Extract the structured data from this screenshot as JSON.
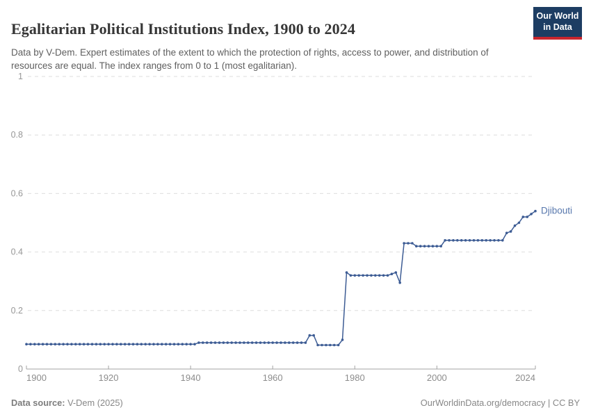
{
  "header": {
    "title": "Egalitarian Political Institutions Index, 1900 to 2024",
    "subtitle": "Data by V-Dem. Expert estimates of the extent to which the protection of rights, access to power, and distribution of resources are equal. The index ranges from 0 to 1 (most egalitarian).",
    "logo": {
      "line1": "Our World",
      "line2": "in Data",
      "bg_color": "#1d3d63",
      "accent_color": "#c9262e"
    }
  },
  "footer": {
    "source_label": "Data source:",
    "source_value": " V-Dem (2025)",
    "link_text": "OurWorldinData.org/democracy",
    "separator": " | ",
    "license": "CC BY"
  },
  "chart_data": {
    "type": "line",
    "title": "Egalitarian Political Institutions Index, 1900 to 2024",
    "xlabel": "",
    "ylabel": "",
    "xlim": [
      1900,
      2024
    ],
    "ylim": [
      0,
      1
    ],
    "x_ticks": [
      1900,
      1920,
      1940,
      1960,
      1980,
      2000,
      2024
    ],
    "y_ticks": [
      0,
      0.2,
      0.4,
      0.6,
      0.8,
      1
    ],
    "grid": "horizontal-dashed",
    "legend_position": "end-of-line-label",
    "series": [
      {
        "name": "Djibouti",
        "color": "#3d5c94",
        "label_color": "#5878ad",
        "start_year": 1900,
        "end_year": 2024,
        "values": [
          0.085,
          0.085,
          0.085,
          0.085,
          0.085,
          0.085,
          0.085,
          0.085,
          0.085,
          0.085,
          0.085,
          0.085,
          0.085,
          0.085,
          0.085,
          0.085,
          0.085,
          0.085,
          0.085,
          0.085,
          0.085,
          0.085,
          0.085,
          0.085,
          0.085,
          0.085,
          0.085,
          0.085,
          0.085,
          0.085,
          0.085,
          0.085,
          0.085,
          0.085,
          0.085,
          0.085,
          0.085,
          0.085,
          0.085,
          0.085,
          0.085,
          0.085,
          0.09,
          0.09,
          0.09,
          0.09,
          0.09,
          0.09,
          0.09,
          0.09,
          0.09,
          0.09,
          0.09,
          0.09,
          0.09,
          0.09,
          0.09,
          0.09,
          0.09,
          0.09,
          0.09,
          0.09,
          0.09,
          0.09,
          0.09,
          0.09,
          0.09,
          0.09,
          0.09,
          0.115,
          0.115,
          0.082,
          0.082,
          0.082,
          0.082,
          0.082,
          0.082,
          0.1,
          0.33,
          0.32,
          0.32,
          0.32,
          0.32,
          0.32,
          0.32,
          0.32,
          0.32,
          0.32,
          0.32,
          0.325,
          0.33,
          0.295,
          0.43,
          0.43,
          0.43,
          0.42,
          0.42,
          0.42,
          0.42,
          0.42,
          0.42,
          0.42,
          0.44,
          0.44,
          0.44,
          0.44,
          0.44,
          0.44,
          0.44,
          0.44,
          0.44,
          0.44,
          0.44,
          0.44,
          0.44,
          0.44,
          0.44,
          0.465,
          0.47,
          0.49,
          0.5,
          0.52,
          0.52,
          0.53,
          0.54
        ]
      }
    ]
  },
  "axis_style": {
    "grid_color": "#dedede",
    "axis_color": "#a3a3a3",
    "tick_label_color": "#979797"
  }
}
